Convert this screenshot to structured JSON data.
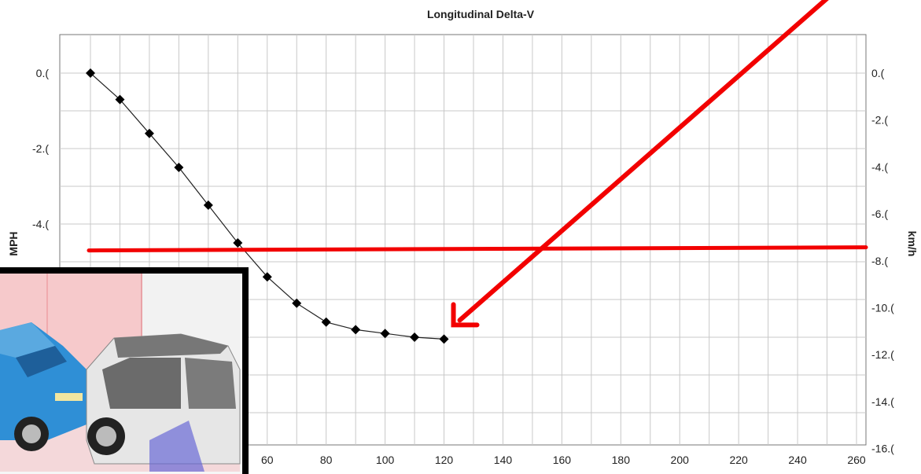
{
  "chart_data": {
    "type": "line",
    "title": "Longitudinal Delta-V",
    "ylabel": "MPH",
    "y2label": "km/h",
    "xlim": [
      0,
      260
    ],
    "ylim": [
      -7.3,
      1.0
    ],
    "x_ticks": [
      "60",
      "80",
      "100",
      "120",
      "140",
      "160",
      "180",
      "200",
      "220",
      "240",
      "260"
    ],
    "x_tick_values": [
      60,
      80,
      100,
      120,
      140,
      160,
      180,
      200,
      220,
      240,
      260
    ],
    "y_ticks": [
      "0.(",
      "-2.(",
      "-4.("
    ],
    "y_tick_values": [
      0,
      -2,
      -4
    ],
    "y2_ticks": [
      "0.(",
      "-2.(",
      "-4.(",
      "-6.(",
      "-8.(",
      "-10.(",
      "-12.(",
      "-14.(",
      "-16.("
    ],
    "y2_tick_values": [
      0,
      -2,
      -4,
      -6,
      -8,
      -10,
      -12,
      -14,
      -16
    ],
    "grid": true,
    "series": [
      {
        "marker": "diamond",
        "x": [
          0,
          10,
          20,
          30,
          40,
          50,
          60,
          70,
          80,
          90,
          100,
          110,
          120
        ],
        "y": [
          0.0,
          -0.7,
          -1.6,
          -2.5,
          -3.5,
          -4.5,
          -5.4,
          -6.1,
          -6.6,
          -6.8,
          -6.9,
          -7.0,
          -7.05
        ]
      }
    ]
  },
  "annotations": {
    "red_color": "#f20000",
    "horizontal_line_y_mph": -4.7,
    "arrow_points_to": {
      "x": 120,
      "y": -7.05
    }
  },
  "inset": {
    "description_icon": "crash-simulation-image"
  }
}
